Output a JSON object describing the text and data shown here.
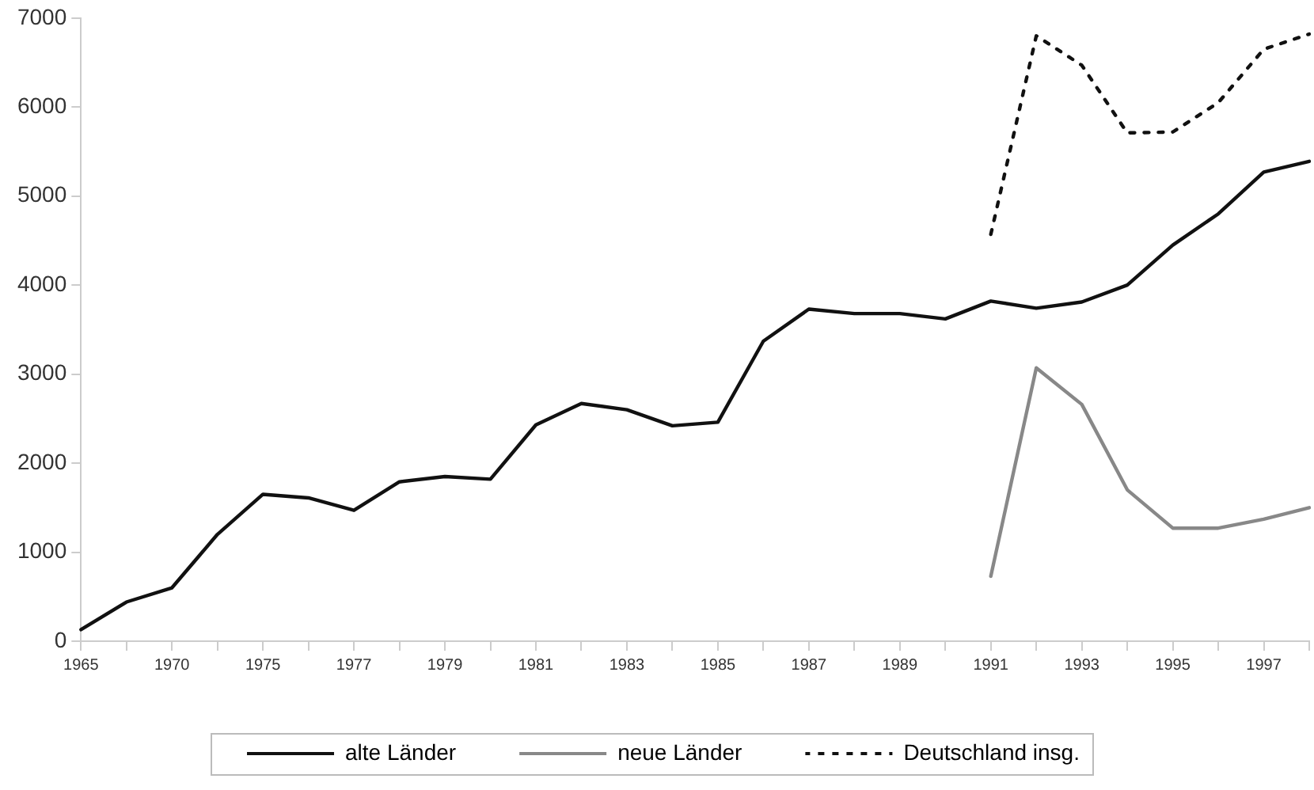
{
  "chart_data": {
    "type": "line",
    "categories": [
      "1965",
      null,
      "1970",
      null,
      "1975",
      null,
      "1977",
      null,
      "1979",
      null,
      "1981",
      null,
      "1983",
      null,
      "1985",
      null,
      "1987",
      null,
      "1989",
      null,
      "1991",
      null,
      "1993",
      null,
      "1995",
      null,
      "1997",
      null
    ],
    "series": [
      {
        "name": "alte Länder",
        "color": "#111111",
        "line_style": "solid",
        "values": [
          130,
          440,
          600,
          1200,
          1650,
          1610,
          1470,
          1790,
          1850,
          1820,
          2430,
          2670,
          2600,
          2420,
          2460,
          3370,
          3730,
          3680,
          3680,
          3620,
          3820,
          3740,
          3810,
          4000,
          4450,
          4800,
          5270,
          5390
        ]
      },
      {
        "name": "neue Länder",
        "color": "#888888",
        "line_style": "solid",
        "values": [
          null,
          null,
          null,
          null,
          null,
          null,
          null,
          null,
          null,
          null,
          null,
          null,
          null,
          null,
          null,
          null,
          null,
          null,
          null,
          null,
          730,
          3070,
          2660,
          1700,
          1270,
          1270,
          1370,
          1500
        ]
      },
      {
        "name": "Deutschland insg.",
        "color": "#111111",
        "line_style": "dotted",
        "values": [
          null,
          null,
          null,
          null,
          null,
          null,
          null,
          null,
          null,
          null,
          null,
          null,
          null,
          null,
          null,
          null,
          null,
          null,
          null,
          null,
          4570,
          6800,
          6470,
          5710,
          5720,
          6050,
          6650,
          6820
        ]
      }
    ],
    "ylim": [
      0,
      7000
    ],
    "yticks": [
      0,
      1000,
      2000,
      3000,
      4000,
      5000,
      6000,
      7000
    ],
    "grid": false,
    "legend": "bottom",
    "marker": "none"
  }
}
